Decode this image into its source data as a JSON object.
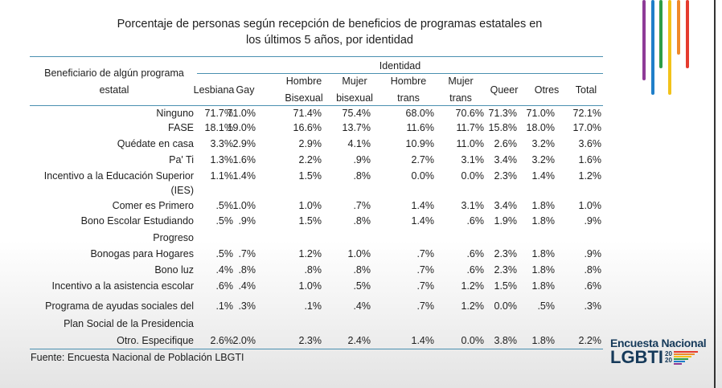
{
  "title_lines": [
    "Porcentaje de personas según recepción de beneficios de programas estatales en",
    "los últimos 5 años, por identidad"
  ],
  "table": {
    "row_header": [
      "Beneficiario de algún programa",
      "estatal"
    ],
    "group_header": "Identidad",
    "columns": [
      {
        "lines": [
          "Lesbiana"
        ]
      },
      {
        "lines": [
          "Gay"
        ]
      },
      {
        "lines": [
          "Hombre",
          "Bisexual"
        ]
      },
      {
        "lines": [
          "Mujer",
          "bisexual"
        ]
      },
      {
        "lines": [
          "Hombre",
          "trans"
        ]
      },
      {
        "lines": [
          "Mujer",
          "trans"
        ]
      },
      {
        "lines": [
          "Queer"
        ]
      },
      {
        "lines": [
          "Otres"
        ]
      },
      {
        "lines": [
          "Total"
        ]
      }
    ],
    "rows": [
      {
        "label": [
          "Ninguno"
        ],
        "values": [
          "71.7%",
          "71.0%",
          "71.4%",
          "75.4%",
          "68.0%",
          "70.6%",
          "71.3%",
          "71.0%",
          "72.1%"
        ]
      },
      {
        "label": [
          "FASE"
        ],
        "values": [
          "18.1%",
          "19.0%",
          "16.6%",
          "13.7%",
          "11.6%",
          "11.7%",
          "15.8%",
          "18.0%",
          "17.0%"
        ]
      },
      {
        "label": [
          "Quédate en casa"
        ],
        "values": [
          "3.3%",
          "2.9%",
          "2.9%",
          "4.1%",
          "10.9%",
          "11.0%",
          "2.6%",
          "3.2%",
          "3.6%"
        ]
      },
      {
        "label": [
          "Pa' Ti"
        ],
        "values": [
          "1.3%",
          "1.6%",
          "2.2%",
          ".9%",
          "2.7%",
          "3.1%",
          "3.4%",
          "3.2%",
          "1.6%"
        ]
      },
      {
        "label": [
          "Incentivo a la Educación Superior",
          "(IES)"
        ],
        "values": [
          "1.1%",
          "1.4%",
          "1.5%",
          ".8%",
          "0.0%",
          "0.0%",
          "2.3%",
          "1.4%",
          "1.2%"
        ]
      },
      {
        "label": [
          "Comer es Primero"
        ],
        "values": [
          ".5%",
          "1.0%",
          "1.0%",
          ".7%",
          "1.4%",
          "3.1%",
          "3.4%",
          "1.8%",
          "1.0%"
        ]
      },
      {
        "label": [
          "Bono Escolar Estudiando",
          "Progreso"
        ],
        "values": [
          ".5%",
          ".9%",
          "1.5%",
          ".8%",
          "1.4%",
          ".6%",
          "1.9%",
          "1.8%",
          ".9%"
        ]
      },
      {
        "label": [
          "Bonogas para Hogares"
        ],
        "values": [
          ".5%",
          ".7%",
          "1.2%",
          "1.0%",
          ".7%",
          ".6%",
          "2.3%",
          "1.8%",
          ".9%"
        ]
      },
      {
        "label": [
          "Bono luz"
        ],
        "values": [
          ".4%",
          ".8%",
          ".8%",
          ".8%",
          ".7%",
          ".6%",
          "2.3%",
          "1.8%",
          ".8%"
        ]
      },
      {
        "label": [
          "Incentivo a la asistencia escolar"
        ],
        "values": [
          ".6%",
          ".4%",
          "1.0%",
          ".5%",
          ".7%",
          "1.2%",
          "1.5%",
          "1.8%",
          ".6%"
        ]
      },
      {
        "label": [
          "Programa de ayudas sociales del",
          "Plan Social de la Presidencia"
        ],
        "values": [
          ".1%",
          ".3%",
          ".1%",
          ".4%",
          ".7%",
          "1.2%",
          "0.0%",
          ".5%",
          ".3%"
        ]
      },
      {
        "label": [
          "Otro. Especifique"
        ],
        "values": [
          "2.6%",
          "2.0%",
          "2.3%",
          "2.4%",
          "1.4%",
          "0.0%",
          "3.8%",
          "1.8%",
          "2.2%"
        ]
      }
    ]
  },
  "source": "Fuente: Encuesta Nacional de Población LBGTI",
  "logo": {
    "line1": "Encuesta Nacional",
    "line2": "LGBTI",
    "year_top": "20",
    "year_bottom": "20"
  },
  "colors": {
    "rule": "#4a90b0",
    "logo": "#163a5a",
    "stripes": [
      "#8e3b97",
      "#1f7fc9",
      "#2e9d47",
      "#f2c21a",
      "#f08a2a",
      "#e53b2e"
    ]
  }
}
